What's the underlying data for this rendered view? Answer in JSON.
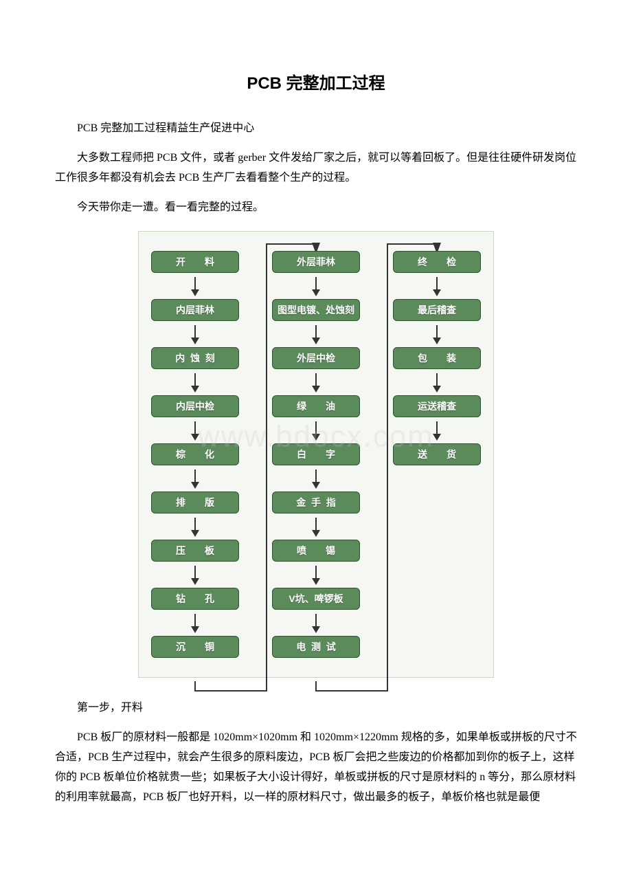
{
  "title": "PCB 完整加工过程",
  "paragraphs": {
    "p1": "PCB 完整加工过程精益生产促进中心",
    "p2": "大多数工程师把 PCB 文件，或者 gerber 文件发给厂家之后，就可以等着回板了。但是往往硬件研发岗位工作很多年都没有机会去 PCB 生产厂去看看整个生产的过程。",
    "p3": "今天带你走一遭。看一看完整的过程。",
    "p4": "第一步，开料",
    "p5": "PCB 板厂的原材料一般都是 1020mm×1020mm 和 1020mm×1220mm 规格的多，如果单板或拼板的尺寸不合适，PCB 生产过程中，就会产生很多的原料废边，PCB 板厂会把之些废边的价格都加到你的板子上，这样你的 PCB 板单位价格就贵一些；如果板子大小设计得好，单板或拼板的尺寸是原材料的 n 等分，那么原材料的利用率就最高，PCB 板厂也好开料，以一样的原材料尺寸，做出最多的板子，单板价格也就是最便"
  },
  "flowchart": {
    "watermark": "www.bdocx.com",
    "node_bg": "#5b8a5b",
    "node_border": "#2f5230",
    "text_color": "#ffffff",
    "bg_color": "#f5f7f2",
    "columns": [
      [
        "开　　料",
        "内层菲林",
        "内  蚀  刻",
        "内层中检",
        "棕　　化",
        "排　　版",
        "压　　板",
        "钻　　孔",
        "沉　　铜"
      ],
      [
        "外层菲林",
        "图型电镀、处蚀刻",
        "外层中检",
        "绿　　油",
        "白　　字",
        "金  手  指",
        "喷　　锡",
        "V坑、啤锣板",
        "电  测  试"
      ],
      [
        "终　　检",
        "最后稽查",
        "包　　装",
        "运送稽查",
        "送　　货"
      ]
    ]
  }
}
